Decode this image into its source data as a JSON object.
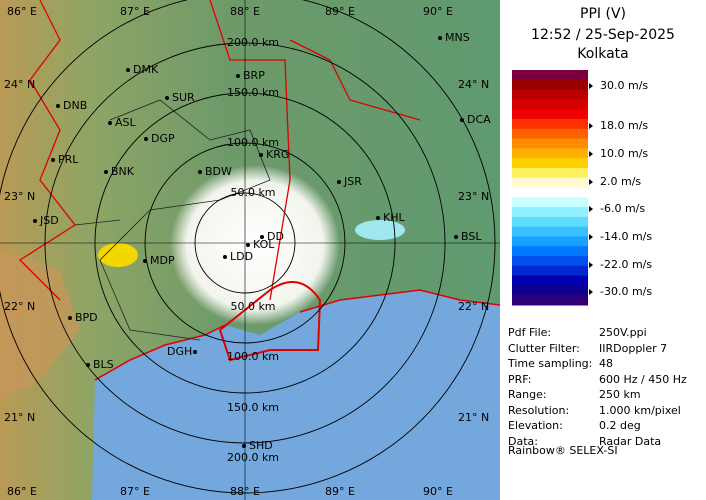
{
  "header": {
    "title": "PPI (V)",
    "time": "12:52 / 25-Sep-2025",
    "site": "Kolkata"
  },
  "legend": [
    "30.0 m/s",
    "18.0 m/s",
    "10.0 m/s",
    "2.0 m/s",
    "-6.0 m/s",
    "-14.0 m/s",
    "-22.0 m/s",
    "-30.0 m/s"
  ],
  "info": [
    [
      "Pdf File:",
      "250V.ppi"
    ],
    [
      "Clutter Filter:",
      "IIRDoppler 7"
    ],
    [
      "Time sampling:",
      "48"
    ],
    [
      "PRF:",
      "600 Hz / 450 Hz"
    ],
    [
      "Range:",
      "250 km"
    ],
    [
      "Resolution:",
      "1.000 km/pixel"
    ],
    [
      "Elevation:",
      "0.2 deg"
    ],
    [
      "Data:",
      "Radar Data"
    ]
  ],
  "footer": "Rainbow® SELEX-SI",
  "map": {
    "lon_labels": [
      "86° E",
      "87° E",
      "88° E",
      "89° E",
      "90° E"
    ],
    "lat_labels": [
      "24° N",
      "23° N",
      "22° N",
      "21° N"
    ],
    "range_labels_north": [
      "50.0 km",
      "100.0 km",
      "150.0 km",
      "200.0 km"
    ],
    "range_labels_south": [
      "50.0 km",
      "100.0 km",
      "150.0 km",
      "200.0 km"
    ],
    "cities": [
      "MNS",
      "DMK",
      "BRP",
      "DNB",
      "SUR",
      "ASL",
      "DCA",
      "DGP",
      "KRG",
      "PRL",
      "BNK",
      "BDW",
      "JSR",
      "JSD",
      "KHL",
      "MDP",
      "DD",
      "KOL",
      "LDD",
      "BSL",
      "BPD",
      "DGH",
      "BLS",
      "SHD"
    ]
  }
}
